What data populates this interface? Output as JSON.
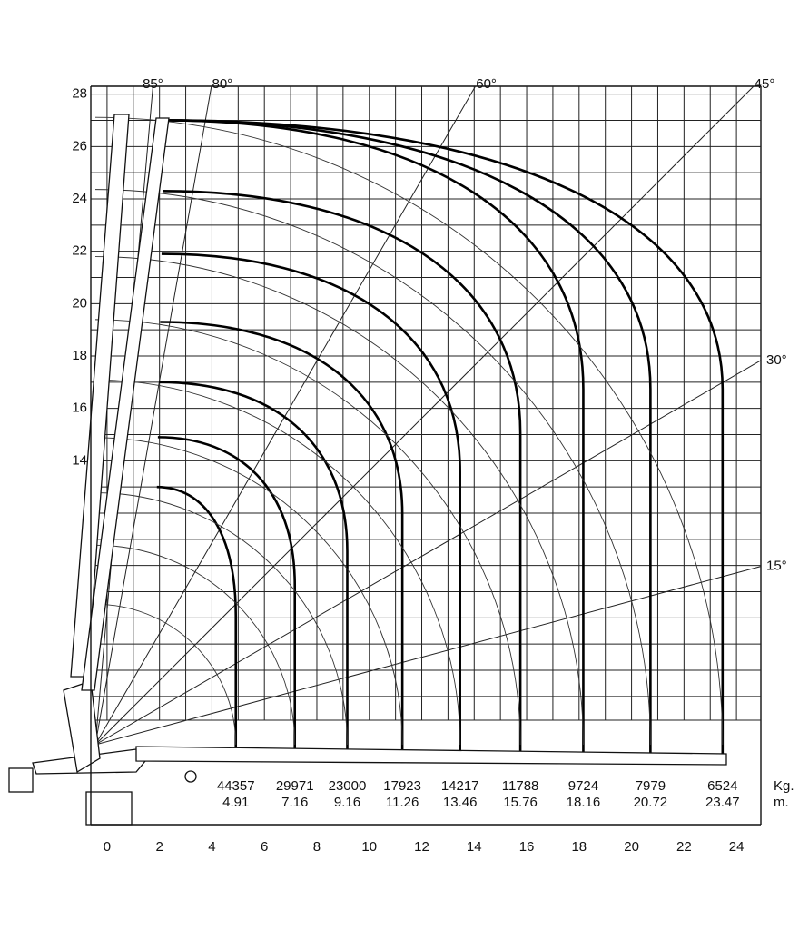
{
  "chart_data": {
    "type": "load-chart",
    "xlim": [
      -0.62,
      25
    ],
    "ylim": [
      0,
      28.3
    ],
    "xticks": [
      0,
      2,
      4,
      6,
      8,
      10,
      12,
      14,
      16,
      18,
      20,
      22,
      24
    ],
    "yticks": [
      14,
      16,
      18,
      20,
      22,
      24,
      26,
      28
    ],
    "grid": true,
    "angles": [
      {
        "value": 85,
        "label": "85°"
      },
      {
        "value": 80,
        "label": "80°"
      },
      {
        "value": 60,
        "label": "60°"
      },
      {
        "value": 45,
        "label": "45°"
      },
      {
        "value": 30,
        "label": "30°"
      },
      {
        "value": 15,
        "label": "15°"
      }
    ],
    "load_unit": "Kg.",
    "radius_unit": "m.",
    "loads": [
      44357,
      29971,
      23000,
      17923,
      14217,
      11788,
      9724,
      7979,
      6524
    ],
    "radius_labels": [
      "4.91",
      "7.16",
      "9.16",
      "11.26",
      "13.46",
      "15.76",
      "18.16",
      "20.72",
      "23.47"
    ],
    "radii": [
      4.91,
      7.16,
      9.16,
      11.26,
      13.46,
      15.76,
      18.16,
      20.72,
      23.47
    ],
    "tip_heights": [
      13,
      14.9,
      17,
      19.3,
      21.9,
      24.3,
      27,
      27,
      27
    ]
  }
}
